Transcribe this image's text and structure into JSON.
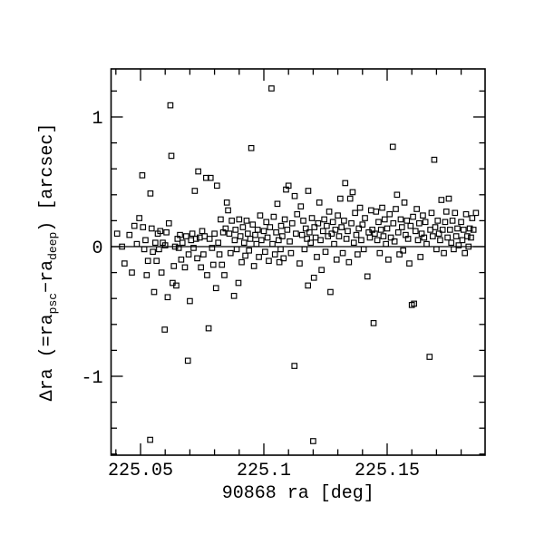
{
  "figure": {
    "background_color": "#ffffff",
    "ink_color": "#000000"
  },
  "chart_data": {
    "type": "scatter",
    "title": "",
    "xlabel": "90868 ra [deg]",
    "ylabel_plain": "Δra (=ra_psc−ra_deep) [arcsec]",
    "ylabel_parts": [
      {
        "text": "Δra (=ra"
      },
      {
        "text": "psc",
        "sub": true
      },
      {
        "text": "−ra"
      },
      {
        "text": "deep",
        "sub": true
      },
      {
        "text": ") [arcsec]"
      }
    ],
    "marker": "open-square",
    "marker_color": "#000000",
    "grid": false,
    "legend": null,
    "zero_line_y": 0,
    "xlim": [
      225.03805,
      225.18971
    ],
    "ylim": [
      -1.6084,
      1.3706
    ],
    "x_major_ticks": [
      225.05,
      225.1,
      225.15
    ],
    "x_major_labels": [
      "225.05",
      "225.1",
      "225.15"
    ],
    "x_minor_ticks": [
      225.04,
      225.06,
      225.07,
      225.08,
      225.09,
      225.11,
      225.12,
      225.13,
      225.14,
      225.16,
      225.17,
      225.18
    ],
    "y_major_ticks": [
      -1,
      0,
      1
    ],
    "y_major_labels": [
      "-1",
      "0",
      "1"
    ],
    "y_minor_ticks": [
      -1.6,
      -1.4,
      -1.2,
      -0.8,
      -0.6,
      -0.4,
      -0.2,
      0.2,
      0.4,
      0.6,
      0.8,
      1.2
    ],
    "points": [
      [
        225.0405,
        0.1
      ],
      [
        225.0425,
        0.0
      ],
      [
        225.0435,
        -0.13
      ],
      [
        225.0455,
        0.09
      ],
      [
        225.0465,
        -0.2
      ],
      [
        225.0475,
        0.16
      ],
      [
        225.0485,
        0.02
      ],
      [
        225.0495,
        0.22
      ],
      [
        225.0507,
        0.55
      ],
      [
        225.051,
        0.15
      ],
      [
        225.0515,
        -0.02
      ],
      [
        225.052,
        0.05
      ],
      [
        225.0525,
        -0.22
      ],
      [
        225.053,
        -0.11
      ],
      [
        225.0539,
        -1.49
      ],
      [
        225.054,
        0.41
      ],
      [
        225.0545,
        0.14
      ],
      [
        225.055,
        -0.04
      ],
      [
        225.0555,
        -0.35
      ],
      [
        225.056,
        0.03
      ],
      [
        225.0565,
        -0.11
      ],
      [
        225.057,
        0.1
      ],
      [
        225.0575,
        -0.02
      ],
      [
        225.058,
        0.12
      ],
      [
        225.0585,
        -0.2
      ],
      [
        225.059,
        0.03
      ],
      [
        225.0598,
        -0.64
      ],
      [
        225.06,
        0.01
      ],
      [
        225.0605,
        0.11
      ],
      [
        225.061,
        -0.39
      ],
      [
        225.0615,
        0.18
      ],
      [
        225.0621,
        1.09
      ],
      [
        225.0625,
        0.7
      ],
      [
        225.063,
        -0.28
      ],
      [
        225.0635,
        -0.15
      ],
      [
        225.064,
        0.0
      ],
      [
        225.0645,
        -0.3
      ],
      [
        225.065,
        0.06
      ],
      [
        225.0655,
        -0.01
      ],
      [
        225.066,
        0.09
      ],
      [
        225.0665,
        -0.1
      ],
      [
        225.067,
        0.03
      ],
      [
        225.068,
        -0.16
      ],
      [
        225.0685,
        0.08
      ],
      [
        225.0692,
        -0.88
      ],
      [
        225.0695,
        -0.06
      ],
      [
        225.07,
        -0.42
      ],
      [
        225.0705,
        0.05
      ],
      [
        225.071,
        0.1
      ],
      [
        225.0715,
        -0.01
      ],
      [
        225.072,
        0.43
      ],
      [
        225.0725,
        0.06
      ],
      [
        225.073,
        -0.09
      ],
      [
        225.0734,
        0.58
      ],
      [
        225.074,
        0.07
      ],
      [
        225.0745,
        -0.16
      ],
      [
        225.075,
        0.12
      ],
      [
        225.0755,
        -0.06
      ],
      [
        225.076,
        0.08
      ],
      [
        225.0766,
        0.53
      ],
      [
        225.077,
        -0.22
      ],
      [
        225.0776,
        -0.63
      ],
      [
        225.078,
        0.06
      ],
      [
        225.0784,
        0.53
      ],
      [
        225.079,
        -0.01
      ],
      [
        225.0795,
        -0.14
      ],
      [
        225.08,
        0.1
      ],
      [
        225.0806,
        -0.32
      ],
      [
        225.081,
        0.47
      ],
      [
        225.0815,
        0.03
      ],
      [
        225.082,
        -0.06
      ],
      [
        225.0825,
        0.21
      ],
      [
        225.083,
        -0.14
      ],
      [
        225.0835,
        0.11
      ],
      [
        225.084,
        -0.22
      ],
      [
        225.0845,
        0.14
      ],
      [
        225.085,
        0.34
      ],
      [
        225.0855,
        0.28
      ],
      [
        225.086,
        0.1
      ],
      [
        225.0865,
        -0.05
      ],
      [
        225.087,
        0.2
      ],
      [
        225.0879,
        -0.38
      ],
      [
        225.0882,
        0.05
      ],
      [
        225.0885,
        0.13
      ],
      [
        225.089,
        -0.02
      ],
      [
        225.0897,
        -0.28
      ],
      [
        225.09,
        0.21
      ],
      [
        225.0905,
        0.08
      ],
      [
        225.091,
        -0.12
      ],
      [
        225.0915,
        0.15
      ],
      [
        225.092,
        0.03
      ],
      [
        225.0925,
        -0.07
      ],
      [
        225.093,
        0.2
      ],
      [
        225.0935,
        0.1
      ],
      [
        225.094,
        -0.03
      ],
      [
        225.0945,
        0.06
      ],
      [
        225.0949,
        0.76
      ],
      [
        225.0955,
        0.17
      ],
      [
        225.096,
        -0.15
      ],
      [
        225.0965,
        0.09
      ],
      [
        225.097,
        0.02
      ],
      [
        225.0975,
        0.13
      ],
      [
        225.098,
        -0.08
      ],
      [
        225.0985,
        0.24
      ],
      [
        225.099,
        0.05
      ],
      [
        225.1,
        0.12
      ],
      [
        225.1005,
        -0.04
      ],
      [
        225.101,
        0.19
      ],
      [
        225.1015,
        0.07
      ],
      [
        225.102,
        -0.11
      ],
      [
        225.1025,
        0.15
      ],
      [
        225.1031,
        1.22
      ],
      [
        225.1035,
        0.02
      ],
      [
        225.104,
        0.23
      ],
      [
        225.1045,
        -0.06
      ],
      [
        225.105,
        0.11
      ],
      [
        225.1055,
        0.33
      ],
      [
        225.106,
        0.05
      ],
      [
        225.1063,
        -0.12
      ],
      [
        225.1068,
        -0.02
      ],
      [
        225.107,
        0.16
      ],
      [
        225.1075,
        0.08
      ],
      [
        225.108,
        -0.09
      ],
      [
        225.1085,
        0.21
      ],
      [
        225.109,
        0.44
      ],
      [
        225.1095,
        0.13
      ],
      [
        225.11,
        0.47
      ],
      [
        225.1105,
        0.04
      ],
      [
        225.111,
        -0.05
      ],
      [
        225.1115,
        0.18
      ],
      [
        225.1124,
        -0.92
      ],
      [
        225.1125,
        0.39
      ],
      [
        225.113,
        0.1
      ],
      [
        225.1135,
        0.25
      ],
      [
        225.1145,
        -0.13
      ],
      [
        225.115,
        0.31
      ],
      [
        225.1155,
        0.09
      ],
      [
        225.116,
        0.2
      ],
      [
        225.1165,
        -0.02
      ],
      [
        225.117,
        0.14
      ],
      [
        225.1175,
        0.06
      ],
      [
        225.1179,
        -0.3
      ],
      [
        225.118,
        0.43
      ],
      [
        225.1185,
        0.11
      ],
      [
        225.119,
        0.03
      ],
      [
        225.1195,
        0.22
      ],
      [
        225.12,
        -1.5
      ],
      [
        225.1203,
        -0.24
      ],
      [
        225.1205,
        0.15
      ],
      [
        225.121,
        0.07
      ],
      [
        225.1215,
        -0.08
      ],
      [
        225.122,
        0.18
      ],
      [
        225.1225,
        0.34
      ],
      [
        225.123,
        0.05
      ],
      [
        225.1234,
        -0.18
      ],
      [
        225.124,
        0.12
      ],
      [
        225.1245,
        0.21
      ],
      [
        225.125,
        -0.04
      ],
      [
        225.1255,
        0.16
      ],
      [
        225.126,
        0.08
      ],
      [
        225.1265,
        0.27
      ],
      [
        225.127,
        -0.35
      ],
      [
        225.1275,
        0.1
      ],
      [
        225.128,
        0.19
      ],
      [
        225.1285,
        0.02
      ],
      [
        225.129,
        0.13
      ],
      [
        225.1295,
        -0.1
      ],
      [
        225.13,
        0.24
      ],
      [
        225.1305,
        0.08
      ],
      [
        225.131,
        0.37
      ],
      [
        225.1315,
        0.15
      ],
      [
        225.132,
        -0.05
      ],
      [
        225.1325,
        0.2
      ],
      [
        225.133,
        0.49
      ],
      [
        225.1335,
        0.06
      ],
      [
        225.134,
        0.12
      ],
      [
        225.1345,
        -0.12
      ],
      [
        225.135,
        0.37
      ],
      [
        225.1355,
        0.18
      ],
      [
        225.136,
        0.42
      ],
      [
        225.1365,
        0.03
      ],
      [
        225.137,
        0.26
      ],
      [
        225.1375,
        0.09
      ],
      [
        225.138,
        -0.06
      ],
      [
        225.1385,
        0.14
      ],
      [
        225.139,
        0.3
      ],
      [
        225.1395,
        0.05
      ],
      [
        225.14,
        0.17
      ],
      [
        225.1405,
        -0.02
      ],
      [
        225.141,
        0.22
      ],
      [
        225.142,
        -0.23
      ],
      [
        225.1425,
        0.11
      ],
      [
        225.143,
        0.07
      ],
      [
        225.1435,
        0.28
      ],
      [
        225.144,
        0.13
      ],
      [
        225.1445,
        -0.59
      ],
      [
        225.145,
        0.1
      ],
      [
        225.1455,
        0.27
      ],
      [
        225.146,
        0.05
      ],
      [
        225.1465,
        0.19
      ],
      [
        225.147,
        -0.05
      ],
      [
        225.1475,
        0.13
      ],
      [
        225.148,
        0.3
      ],
      [
        225.1485,
        0.08
      ],
      [
        225.149,
        0.21
      ],
      [
        225.1495,
        0.02
      ],
      [
        225.15,
        0.14
      ],
      [
        225.1505,
        -0.1
      ],
      [
        225.151,
        0.25
      ],
      [
        225.1515,
        0.07
      ],
      [
        225.1523,
        0.77
      ],
      [
        225.1525,
        0.18
      ],
      [
        225.153,
        0.04
      ],
      [
        225.1535,
        0.29
      ],
      [
        225.154,
        0.4
      ],
      [
        225.1545,
        0.11
      ],
      [
        225.155,
        -0.06
      ],
      [
        225.1555,
        0.21
      ],
      [
        225.156,
        0.15
      ],
      [
        225.1565,
        -0.03
      ],
      [
        225.157,
        0.34
      ],
      [
        225.1575,
        0.09
      ],
      [
        225.158,
        0.2
      ],
      [
        225.1585,
        0.06
      ],
      [
        225.159,
        -0.13
      ],
      [
        225.1595,
        0.16
      ],
      [
        225.16,
        -0.45
      ],
      [
        225.1605,
        0.23
      ],
      [
        225.1609,
        -0.44
      ],
      [
        225.1615,
        0.12
      ],
      [
        225.162,
        0.29
      ],
      [
        225.1625,
        0.05
      ],
      [
        225.163,
        0.18
      ],
      [
        225.1635,
        -0.08
      ],
      [
        225.164,
        0.1
      ],
      [
        225.1645,
        0.24
      ],
      [
        225.165,
        0.07
      ],
      [
        225.1655,
        0.19
      ],
      [
        225.166,
        0.02
      ],
      [
        225.1672,
        -0.85
      ],
      [
        225.1675,
        0.13
      ],
      [
        225.168,
        0.26
      ],
      [
        225.1685,
        0.08
      ],
      [
        225.1691,
        0.67
      ],
      [
        225.1695,
        0.15
      ],
      [
        225.17,
        -0.02
      ],
      [
        225.1705,
        0.2
      ],
      [
        225.171,
        0.1
      ],
      [
        225.1715,
        0.05
      ],
      [
        225.172,
        0.36
      ],
      [
        225.1725,
        0.13
      ],
      [
        225.173,
        -0.05
      ],
      [
        225.1735,
        0.19
      ],
      [
        225.174,
        0.27
      ],
      [
        225.1745,
        0.07
      ],
      [
        225.175,
        0.37
      ],
      [
        225.1755,
        0.13
      ],
      [
        225.176,
        0.03
      ],
      [
        225.1765,
        0.2
      ],
      [
        225.177,
        -0.02
      ],
      [
        225.1775,
        0.26
      ],
      [
        225.178,
        0.08
      ],
      [
        225.1785,
        0.14
      ],
      [
        225.179,
        0.01
      ],
      [
        225.18,
        0.19
      ],
      [
        225.1805,
        0.05
      ],
      [
        225.181,
        0.13
      ],
      [
        225.1815,
        -0.05
      ],
      [
        225.182,
        0.25
      ],
      [
        225.1825,
        0.08
      ],
      [
        225.183,
        0.0
      ],
      [
        225.1835,
        0.14
      ],
      [
        225.184,
        0.07
      ],
      [
        225.1845,
        0.22
      ],
      [
        225.185,
        0.13
      ],
      [
        225.186,
        0.26
      ]
    ]
  }
}
